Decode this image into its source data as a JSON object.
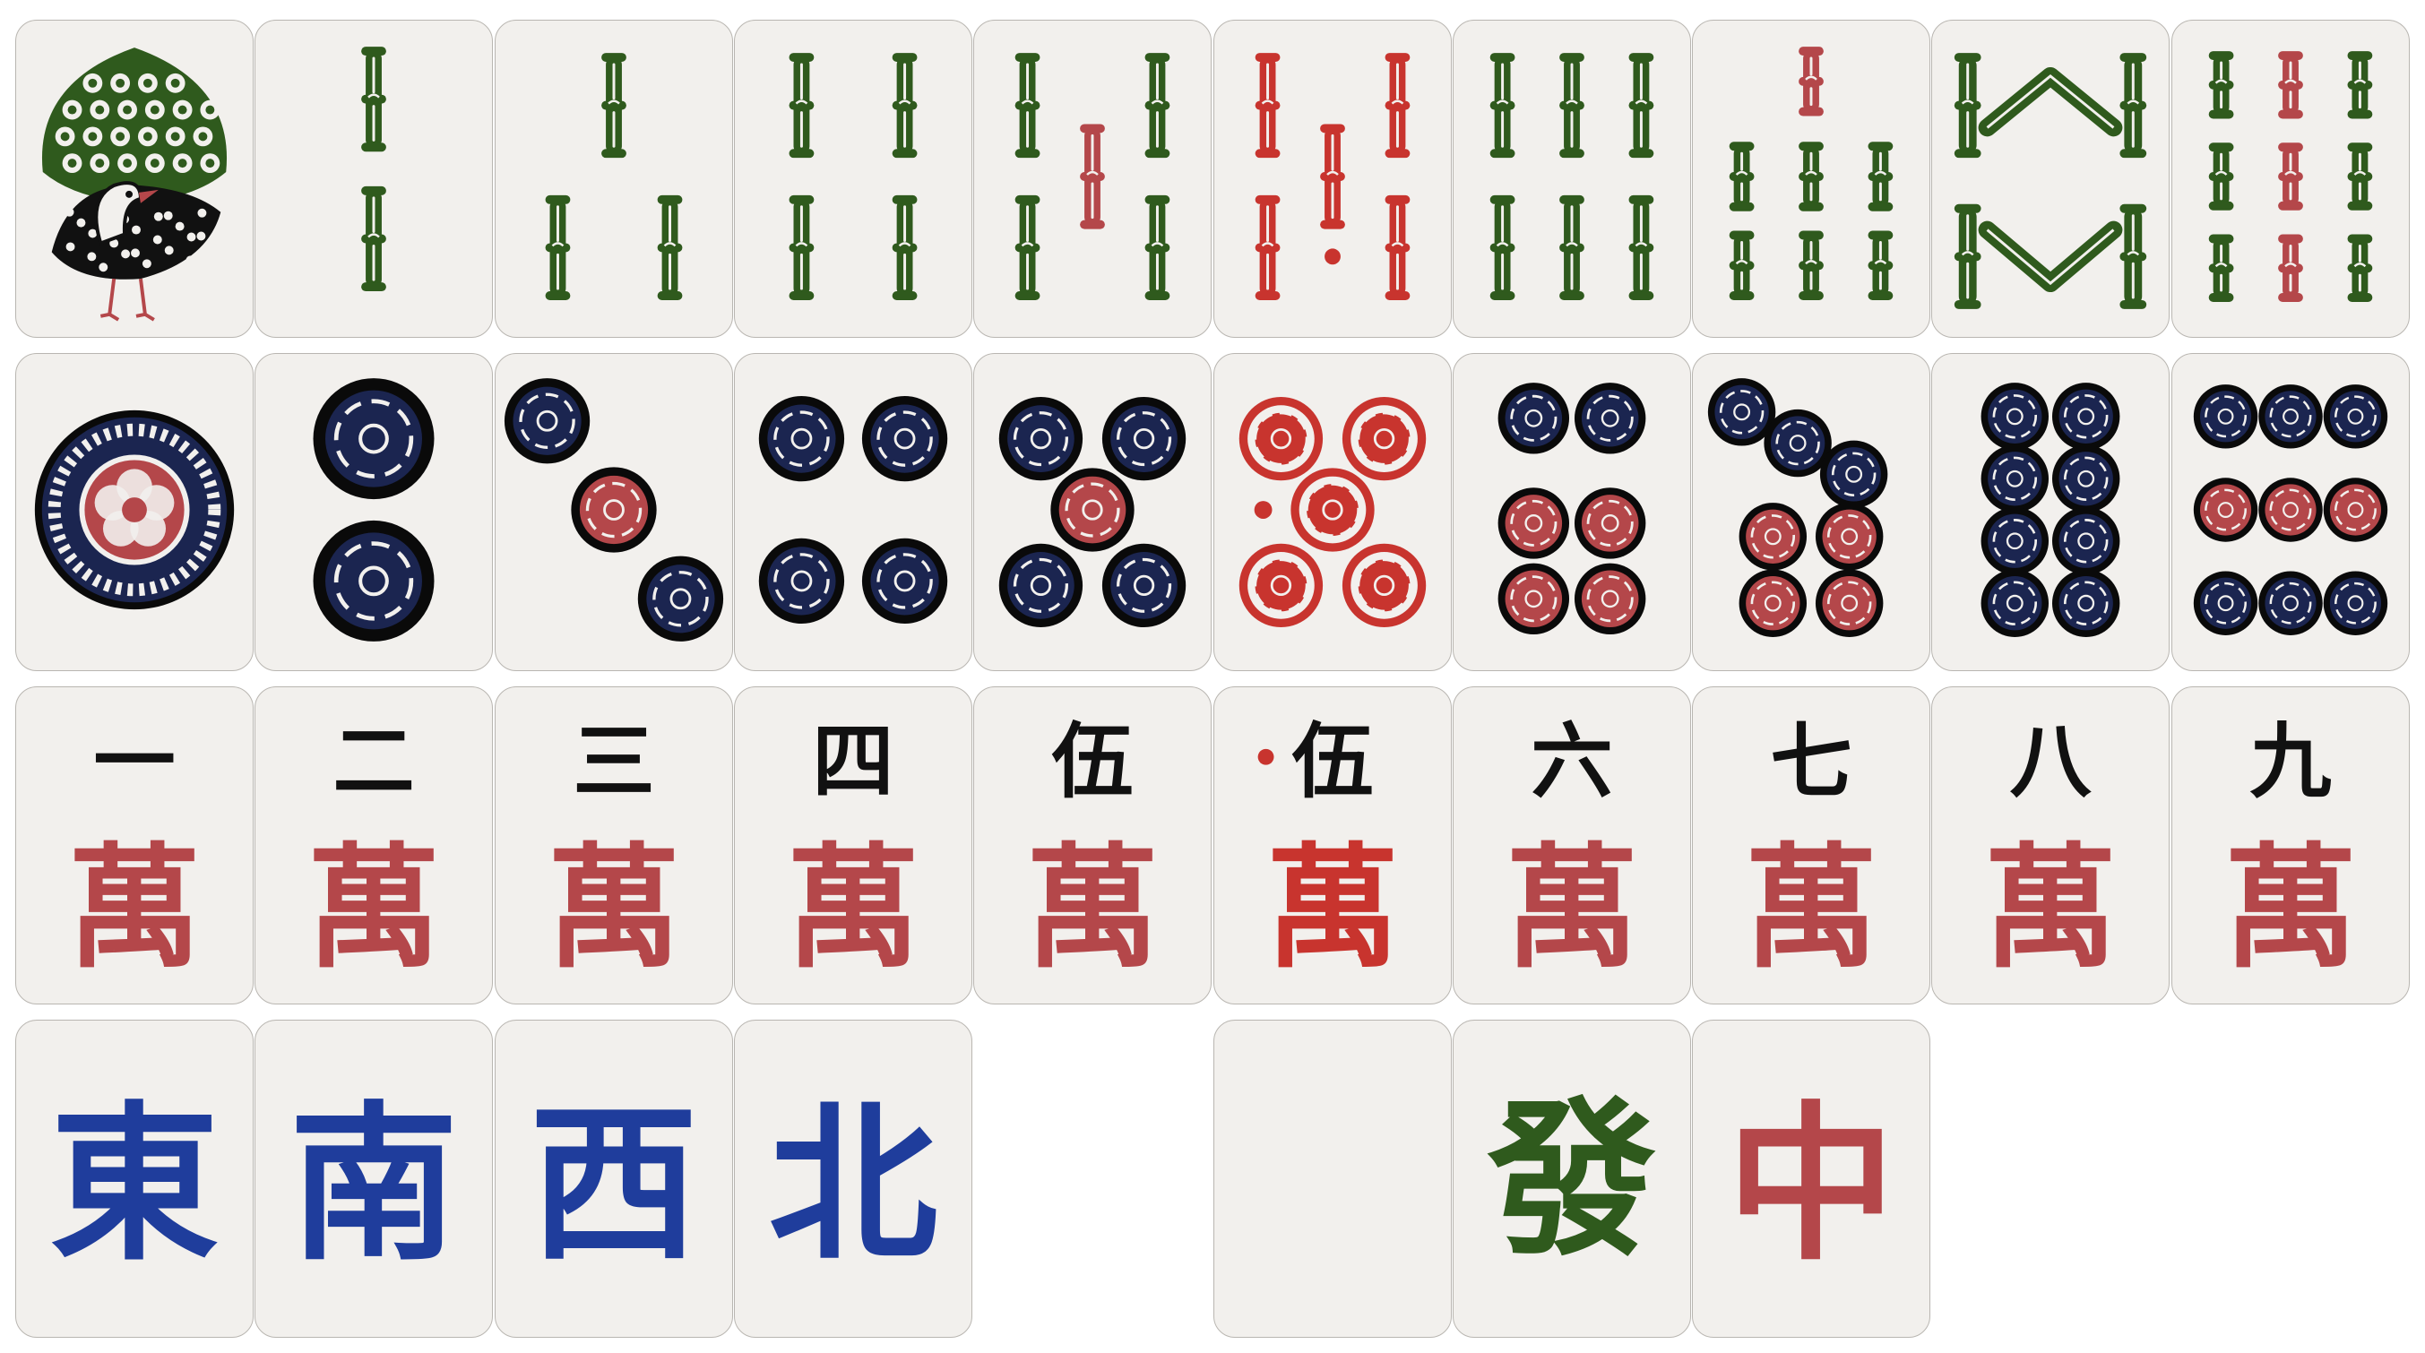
{
  "colors": {
    "tile_face": "#f2f0ed",
    "tile_border": "#b9b6b1",
    "bamboo_green": "#2f5a1d",
    "bamboo_red": "#b4474a",
    "red_five": "#c8342e",
    "dot_navy": "#1b2550",
    "dot_red": "#b4474a",
    "dot_ring": "#0a0a0a",
    "char_black": "#111111",
    "wan_red": "#b4474a",
    "wind_blue": "#1f3d9c",
    "dragon_green": "#2f5a1d",
    "dragon_red": "#b4474a"
  },
  "rows": {
    "bamboo": [
      {
        "name": "bamboo-1",
        "kind": "bird-icon",
        "red": false
      },
      {
        "name": "bamboo-2",
        "count": 2,
        "red": false
      },
      {
        "name": "bamboo-3",
        "count": 3,
        "red": false
      },
      {
        "name": "bamboo-4",
        "count": 4,
        "red": false
      },
      {
        "name": "bamboo-5",
        "count": 5,
        "red": false
      },
      {
        "name": "bamboo-5-red",
        "count": 5,
        "red": true
      },
      {
        "name": "bamboo-6",
        "count": 6,
        "red": false
      },
      {
        "name": "bamboo-7",
        "count": 7,
        "red": false
      },
      {
        "name": "bamboo-8",
        "count": 8,
        "red": false
      },
      {
        "name": "bamboo-9",
        "count": 9,
        "red": false
      }
    ],
    "dots": [
      {
        "name": "dots-1",
        "count": 1,
        "red": false
      },
      {
        "name": "dots-2",
        "count": 2,
        "red": false
      },
      {
        "name": "dots-3",
        "count": 3,
        "red": false
      },
      {
        "name": "dots-4",
        "count": 4,
        "red": false
      },
      {
        "name": "dots-5",
        "count": 5,
        "red": false
      },
      {
        "name": "dots-5-red",
        "count": 5,
        "red": true
      },
      {
        "name": "dots-6",
        "count": 6,
        "red": false
      },
      {
        "name": "dots-7",
        "count": 7,
        "red": false
      },
      {
        "name": "dots-8",
        "count": 8,
        "red": false
      },
      {
        "name": "dots-9",
        "count": 9,
        "red": false
      }
    ],
    "characters": [
      {
        "name": "characters-1",
        "numeral": "一",
        "suit": "萬",
        "red": false
      },
      {
        "name": "characters-2",
        "numeral": "二",
        "suit": "萬",
        "red": false
      },
      {
        "name": "characters-3",
        "numeral": "三",
        "suit": "萬",
        "red": false
      },
      {
        "name": "characters-4",
        "numeral": "四",
        "suit": "萬",
        "red": false
      },
      {
        "name": "characters-5",
        "numeral": "伍",
        "suit": "萬",
        "red": false
      },
      {
        "name": "characters-5-red",
        "numeral": "伍",
        "suit": "萬",
        "red": true
      },
      {
        "name": "characters-6",
        "numeral": "六",
        "suit": "萬",
        "red": false
      },
      {
        "name": "characters-7",
        "numeral": "七",
        "suit": "萬",
        "red": false
      },
      {
        "name": "characters-8",
        "numeral": "八",
        "suit": "萬",
        "red": false
      },
      {
        "name": "characters-9",
        "numeral": "九",
        "suit": "萬",
        "red": false
      }
    ],
    "honors": [
      {
        "name": "wind-east",
        "char": "東",
        "color": "wind"
      },
      {
        "name": "wind-south",
        "char": "南",
        "color": "wind"
      },
      {
        "name": "wind-west",
        "char": "西",
        "color": "wind"
      },
      {
        "name": "wind-north",
        "char": "北",
        "color": "wind"
      },
      {
        "name": "empty-slot",
        "char": "",
        "color": "none"
      },
      {
        "name": "dragon-white",
        "char": "",
        "color": "none"
      },
      {
        "name": "dragon-green",
        "char": "發",
        "color": "green"
      },
      {
        "name": "dragon-red",
        "char": "中",
        "color": "red"
      }
    ]
  }
}
